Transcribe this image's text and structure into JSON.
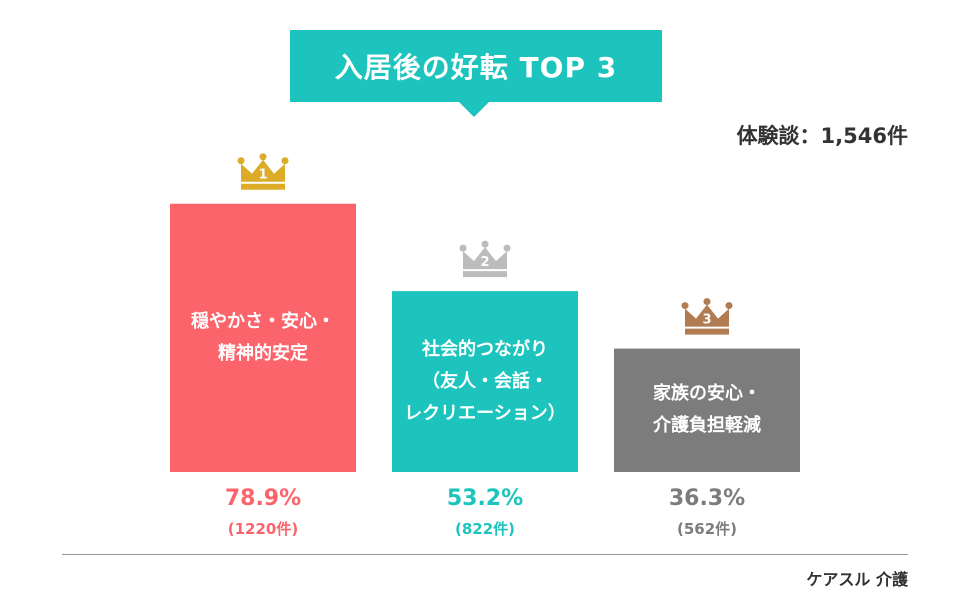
{
  "header": {
    "title": "入居後の好転 TOP 3",
    "total": "体験談：1,546件"
  },
  "source": "ケアスル 介護",
  "chart_data": {
    "type": "bar",
    "categories": [
      {
        "lines": [
          "穏やかさ・安心・",
          "精神的安定"
        ],
        "rank": "1",
        "color": "#fb646b",
        "crown": "#dcab28"
      },
      {
        "lines": [
          "社会的つながり",
          "（友人・会話・",
          "レクリエーション）"
        ],
        "rank": "2",
        "color": "#1cc4bd",
        "crown": "#bcbcbc"
      },
      {
        "lines": [
          "家族の安心・",
          "介護負担軽減"
        ],
        "rank": "3",
        "color": "#7c7c7c",
        "crown": "#b17c52"
      }
    ],
    "values": [
      78.9,
      53.2,
      36.3
    ],
    "value_labels": [
      "78.9%",
      "53.2%",
      "36.3%"
    ],
    "count_labels": [
      "(1220件)",
      "(822件)",
      "(562件)"
    ]
  }
}
